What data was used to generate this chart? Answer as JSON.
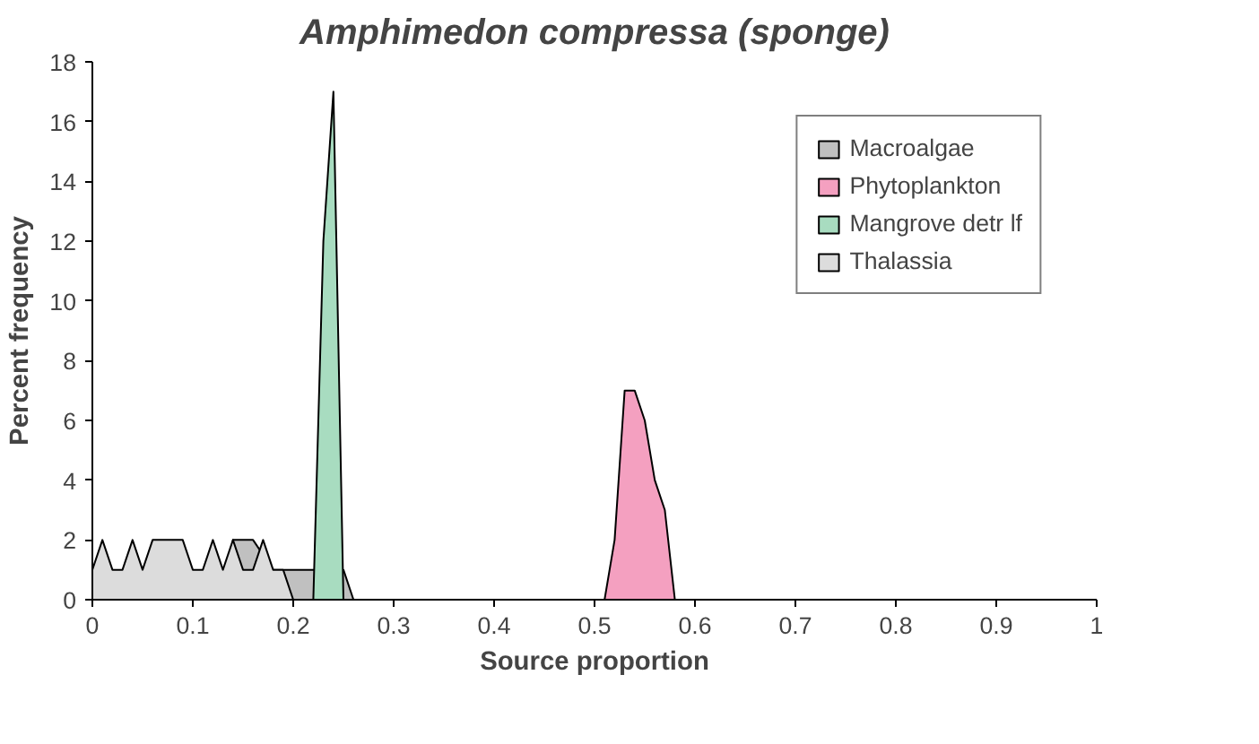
{
  "chart_data": {
    "type": "area",
    "title": "Amphimedon compressa (sponge)",
    "xlabel": "Source proportion",
    "ylabel": "Percent frequency",
    "x": [
      0,
      0.01,
      0.02,
      0.03,
      0.04,
      0.05,
      0.06,
      0.07,
      0.08,
      0.09,
      0.1,
      0.11,
      0.12,
      0.13,
      0.14,
      0.15,
      0.16,
      0.17,
      0.18,
      0.19,
      0.2,
      0.21,
      0.22,
      0.23,
      0.24,
      0.25,
      0.26,
      0.27,
      0.28,
      0.29,
      0.3,
      0.31,
      0.32,
      0.33,
      0.34,
      0.35,
      0.36,
      0.37,
      0.38,
      0.39,
      0.4,
      0.41,
      0.42,
      0.43,
      0.44,
      0.45,
      0.46,
      0.47,
      0.48,
      0.49,
      0.5,
      0.51,
      0.52,
      0.53,
      0.54,
      0.55,
      0.56,
      0.57,
      0.58,
      0.59,
      0.6,
      0.61,
      0.62,
      0.63,
      0.64,
      0.65,
      0.66,
      0.67,
      0.68,
      0.69,
      0.7,
      0.71,
      0.72,
      0.73,
      0.74,
      0.75,
      0.76,
      0.77,
      0.78,
      0.79,
      0.8,
      0.81,
      0.82,
      0.83,
      0.84,
      0.85,
      0.86,
      0.87,
      0.88,
      0.89,
      0.9,
      0.91,
      0.92,
      0.93,
      0.94,
      0.95,
      0.96,
      0.97,
      0.98,
      0.99,
      1
    ],
    "series": [
      {
        "name": "Macroalgae",
        "color": "#c0c0c0",
        "x": [
          0.14,
          0.15,
          0.16,
          0.18,
          0.19,
          0.2,
          0.21,
          0.22,
          0.25,
          0.26
        ],
        "values": [
          2,
          2,
          2,
          1,
          1,
          1,
          1,
          1,
          1,
          0
        ]
      },
      {
        "name": "Phytoplankton",
        "color": "#f4a0c0",
        "values": [
          0,
          0,
          0,
          0,
          0,
          0,
          0,
          0,
          0,
          0,
          0,
          0,
          0,
          0,
          0,
          0,
          0,
          0,
          0,
          0,
          0,
          0,
          0,
          0,
          0,
          0,
          0,
          0,
          0,
          0,
          0,
          0,
          0,
          0,
          0,
          0,
          0,
          0,
          0,
          0,
          0,
          0,
          0,
          0,
          0,
          0,
          0,
          0,
          0,
          0,
          0,
          0,
          2,
          7,
          7,
          6,
          4,
          3,
          0,
          0,
          0,
          0,
          0,
          0,
          0,
          0,
          0,
          0,
          0,
          0,
          0,
          0,
          0,
          0,
          0,
          0,
          0,
          0,
          0,
          0,
          0,
          0,
          0,
          0,
          0,
          0,
          0,
          0,
          0,
          0,
          0,
          0,
          0,
          0,
          0,
          0,
          0,
          0,
          0,
          0,
          0
        ]
      },
      {
        "name": "Mangrove detr lf",
        "color": "#a8dcc0",
        "values": [
          0,
          0,
          0,
          0,
          0,
          0,
          0,
          0,
          0,
          0,
          0,
          0,
          0,
          0,
          0,
          0,
          0,
          0,
          0,
          0,
          0,
          0,
          0,
          12,
          17,
          0,
          0,
          0,
          0,
          0,
          0,
          0,
          0,
          0,
          0,
          0,
          0,
          0,
          0,
          0,
          0,
          0,
          0,
          0,
          0,
          0,
          0,
          0,
          0,
          0,
          0,
          0,
          0,
          0,
          0,
          0,
          0,
          0,
          0,
          0,
          0,
          0,
          0,
          0,
          0,
          0,
          0,
          0,
          0,
          0,
          0,
          0,
          0,
          0,
          0,
          0,
          0,
          0,
          0,
          0,
          0,
          0,
          0,
          0,
          0,
          0,
          0,
          0,
          0,
          0,
          0,
          0,
          0,
          0,
          0,
          0,
          0,
          0,
          0,
          0,
          0
        ]
      },
      {
        "name": "Thalassia",
        "color": "#dcdcdc",
        "values": [
          1,
          2,
          1,
          1,
          2,
          1,
          2,
          2,
          2,
          2,
          1,
          1,
          2,
          1,
          2,
          1,
          1,
          2,
          1,
          1,
          0,
          0,
          0,
          0,
          0,
          0,
          0,
          0,
          0,
          0,
          0,
          0,
          0,
          0,
          0,
          0,
          0,
          0,
          0,
          0,
          0,
          0,
          0,
          0,
          0,
          0,
          0,
          0,
          0,
          0,
          0,
          0,
          0,
          0,
          0,
          0,
          0,
          0,
          0,
          0,
          0,
          0,
          0,
          0,
          0,
          0,
          0,
          0,
          0,
          0,
          0,
          0,
          0,
          0,
          0,
          0,
          0,
          0,
          0,
          0,
          0,
          0,
          0,
          0,
          0,
          0,
          0,
          0,
          0,
          0,
          0,
          0,
          0,
          0,
          0,
          0,
          0,
          0,
          0,
          0,
          0
        ]
      }
    ],
    "xlim": [
      0,
      1
    ],
    "ylim": [
      0,
      18
    ],
    "xticks": [
      0,
      0.1,
      0.2,
      0.3,
      0.4,
      0.5,
      0.6,
      0.7,
      0.8,
      0.9,
      1
    ],
    "yticks": [
      0,
      2,
      4,
      6,
      8,
      10,
      12,
      14,
      16,
      18
    ],
    "grid": false,
    "legend": "top right"
  }
}
